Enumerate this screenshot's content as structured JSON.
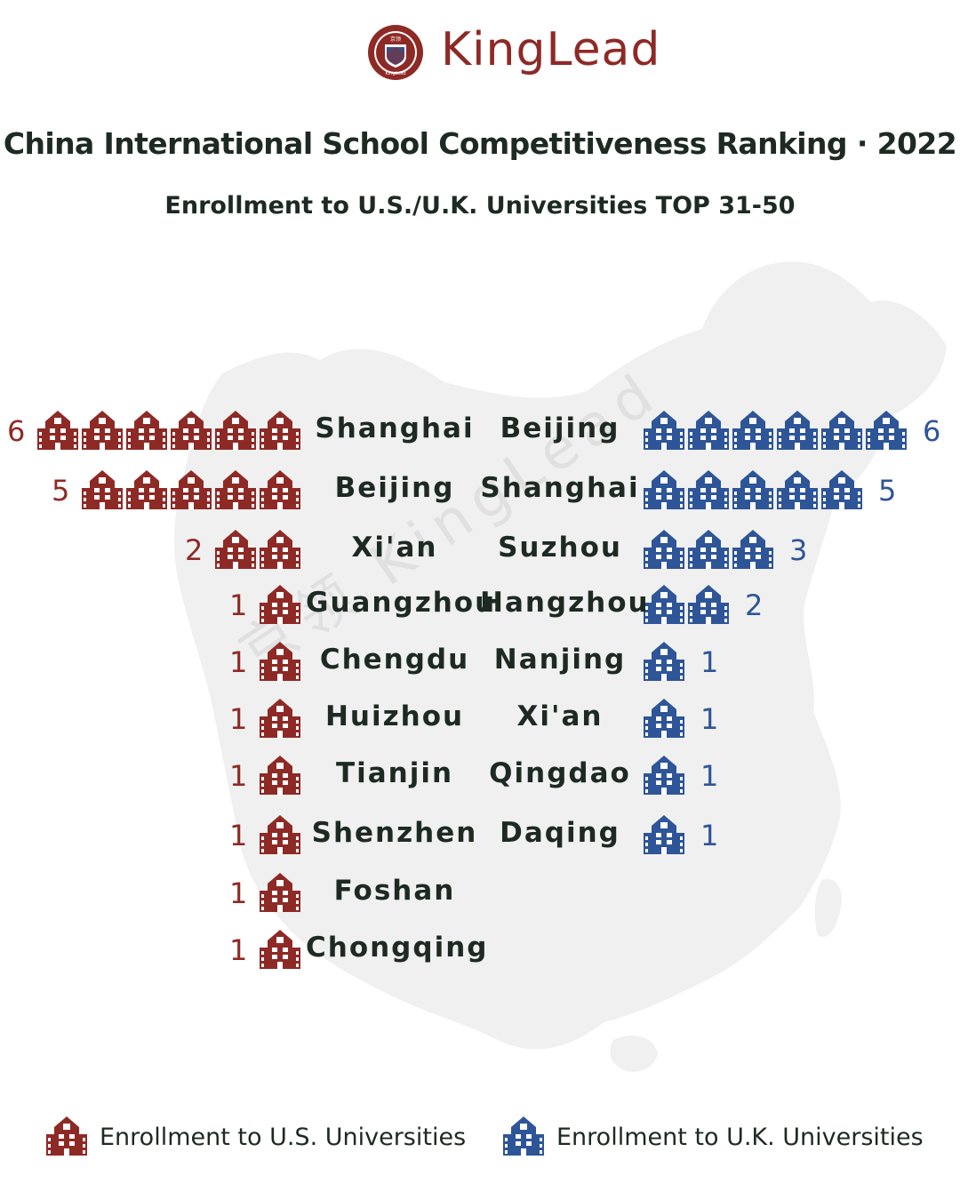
{
  "brand": {
    "name": "KingLead",
    "mark_text": "京领",
    "mark_subtext": "KingLead"
  },
  "watermark": "京领  KingLead",
  "colors": {
    "us": "#8e2a26",
    "uk": "#2e5597",
    "map": "#f0f0f0",
    "text": "#1d2a22"
  },
  "icon_name": "school-building-icon",
  "chart_data": {
    "type": "pictogram",
    "title": "China International School Competitiveness Ranking · 2022",
    "subtitle": "Enrollment to U.S./U.K. Universities TOP 31-50",
    "series": [
      {
        "name": "Enrollment to U.S. Universities",
        "color": "#8e2a26",
        "cities": [
          "Shanghai",
          "Beijing",
          "Xi'an",
          "Guangzhou",
          "Chengdu",
          "Huizhou",
          "Tianjin",
          "Shenzhen",
          "Foshan",
          "Chongqing"
        ],
        "values": [
          6,
          5,
          2,
          1,
          1,
          1,
          1,
          1,
          1,
          1
        ]
      },
      {
        "name": "Enrollment to U.K. Universities",
        "color": "#2e5597",
        "cities": [
          "Beijing",
          "Shanghai",
          "Suzhou",
          "Hangzhou",
          "Nanjing",
          "Xi'an",
          "Qingdao",
          "Daqing"
        ],
        "values": [
          6,
          5,
          3,
          2,
          1,
          1,
          1,
          1
        ]
      }
    ],
    "legend": "bottom"
  }
}
